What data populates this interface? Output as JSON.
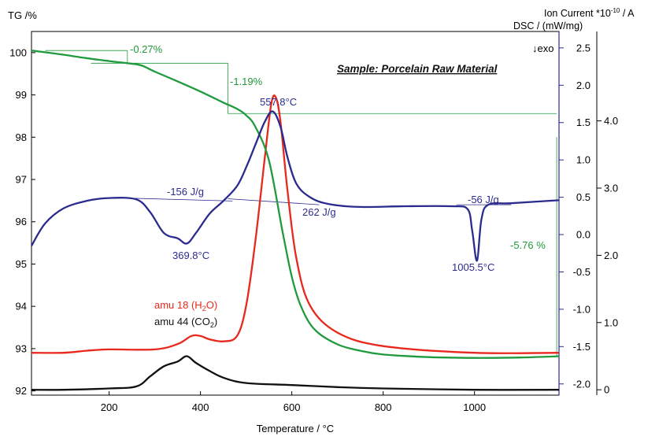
{
  "chart_data": {
    "type": "line",
    "title": "",
    "xlabel": "Temperature / °C",
    "xlim": [
      30,
      1185
    ],
    "x_ticks": [
      200,
      400,
      600,
      800,
      1000
    ],
    "annotation_sample": "Sample: Porcelain Raw Material",
    "axes": {
      "tg": {
        "label": "TG /%",
        "ylim": [
          91.9,
          100.5
        ],
        "ticks": [
          92,
          93,
          94,
          95,
          96,
          97,
          98,
          99,
          100
        ],
        "color": "#000000"
      },
      "dsc": {
        "label": "DSC / (mW/mg)",
        "exo_label": "↓exo",
        "ylim": [
          -2.15,
          2.72
        ],
        "ticks": [
          -2.0,
          -1.5,
          -1.0,
          -0.5,
          0.0,
          0.5,
          1.0,
          1.5,
          2.0,
          2.5
        ],
        "color": "#2b2b8f"
      },
      "ion": {
        "label": "Ion Current *10",
        "label_exp": "-10",
        "label_unit": " / A",
        "ylim": [
          -0.08,
          5.33
        ],
        "ticks": [
          0,
          1.0,
          2.0,
          3.0,
          4.0
        ],
        "color": "#000000"
      }
    },
    "series": [
      {
        "name": "",
        "axis": "tg",
        "color": "#1f9a3c",
        "x": [
          30,
          100,
          150,
          200,
          240,
          270,
          300,
          350,
          400,
          450,
          480,
          500,
          520,
          550,
          580,
          600,
          620,
          650,
          700,
          750,
          800,
          900,
          1000,
          1100,
          1185
        ],
        "y": [
          100.05,
          99.95,
          99.87,
          99.8,
          99.75,
          99.7,
          99.55,
          99.32,
          99.08,
          98.82,
          98.67,
          98.52,
          98.25,
          97.45,
          95.75,
          94.7,
          94.0,
          93.45,
          93.1,
          92.95,
          92.86,
          92.8,
          92.78,
          92.79,
          92.82
        ]
      },
      {
        "name": "",
        "axis": "dsc",
        "color": "#2b2b8f",
        "x": [
          30,
          60,
          100,
          150,
          200,
          260,
          290,
          320,
          350,
          370,
          390,
          420,
          450,
          480,
          500,
          520,
          540,
          557.8,
          575,
          590,
          610,
          640,
          680,
          750,
          850,
          950,
          985,
          995,
          1005.5,
          1015,
          1030,
          1080,
          1185
        ],
        "y": [
          -0.15,
          0.15,
          0.35,
          0.45,
          0.49,
          0.47,
          0.3,
          0.02,
          -0.05,
          -0.12,
          0.02,
          0.28,
          0.45,
          0.65,
          0.9,
          1.2,
          1.5,
          1.65,
          1.45,
          1.05,
          0.68,
          0.5,
          0.41,
          0.37,
          0.38,
          0.38,
          0.34,
          0.05,
          -0.35,
          0.2,
          0.4,
          0.42,
          0.46
        ]
      },
      {
        "name": "amu 18 (H2O)",
        "name_main": "amu 18 (H",
        "name_sub": "2",
        "name_end": "O)",
        "axis": "ion",
        "color": "#e8281c",
        "x": [
          30,
          100,
          150,
          200,
          300,
          350,
          380,
          400,
          420,
          450,
          480,
          500,
          520,
          540,
          555,
          565,
          575,
          590,
          610,
          640,
          700,
          800,
          1000,
          1185
        ],
        "y": [
          0.55,
          0.55,
          0.58,
          0.6,
          0.6,
          0.68,
          0.8,
          0.8,
          0.75,
          0.72,
          0.8,
          1.25,
          2.2,
          3.4,
          4.25,
          4.35,
          4.0,
          3.0,
          1.95,
          1.25,
          0.85,
          0.65,
          0.55,
          0.55
        ]
      },
      {
        "name": "amu 44 (CO2)",
        "name_main": "amu 44 (CO",
        "name_sub": "2",
        "name_end": ")",
        "axis": "ion",
        "color": "#111111",
        "x": [
          30,
          100,
          200,
          260,
          290,
          320,
          350,
          370,
          390,
          420,
          450,
          500,
          600,
          700,
          800,
          1000,
          1185
        ],
        "y": [
          0.0,
          0.0,
          0.02,
          0.05,
          0.2,
          0.35,
          0.42,
          0.5,
          0.4,
          0.28,
          0.18,
          0.1,
          0.07,
          0.04,
          0.02,
          0.0,
          0.0
        ]
      }
    ],
    "annotations": {
      "mass_step_1": {
        "label": "-0.27%",
        "color": "#1f9a3c"
      },
      "mass_step_2": {
        "label": "-1.19%",
        "color": "#1f9a3c"
      },
      "mass_step_3": {
        "label": "-5.76 %",
        "color": "#1f9a3c"
      },
      "peaks": [
        {
          "label": "369.8°C",
          "x": 369.8,
          "y": -0.12,
          "color": "#2b2b8f"
        },
        {
          "label": "557.8°C",
          "x": 557.8,
          "y": 1.65,
          "color": "#2b2b8f"
        },
        {
          "label": "1005.5°C",
          "x": 1005.5,
          "y": -0.35,
          "color": "#2b2b8f"
        }
      ],
      "enthalpies": [
        {
          "label": "-156 J/g",
          "color": "#2b2b8f"
        },
        {
          "label": "262 J/g",
          "color": "#2b2b8f"
        },
        {
          "label": "-56 J/g",
          "color": "#2b2b8f"
        }
      ]
    }
  }
}
